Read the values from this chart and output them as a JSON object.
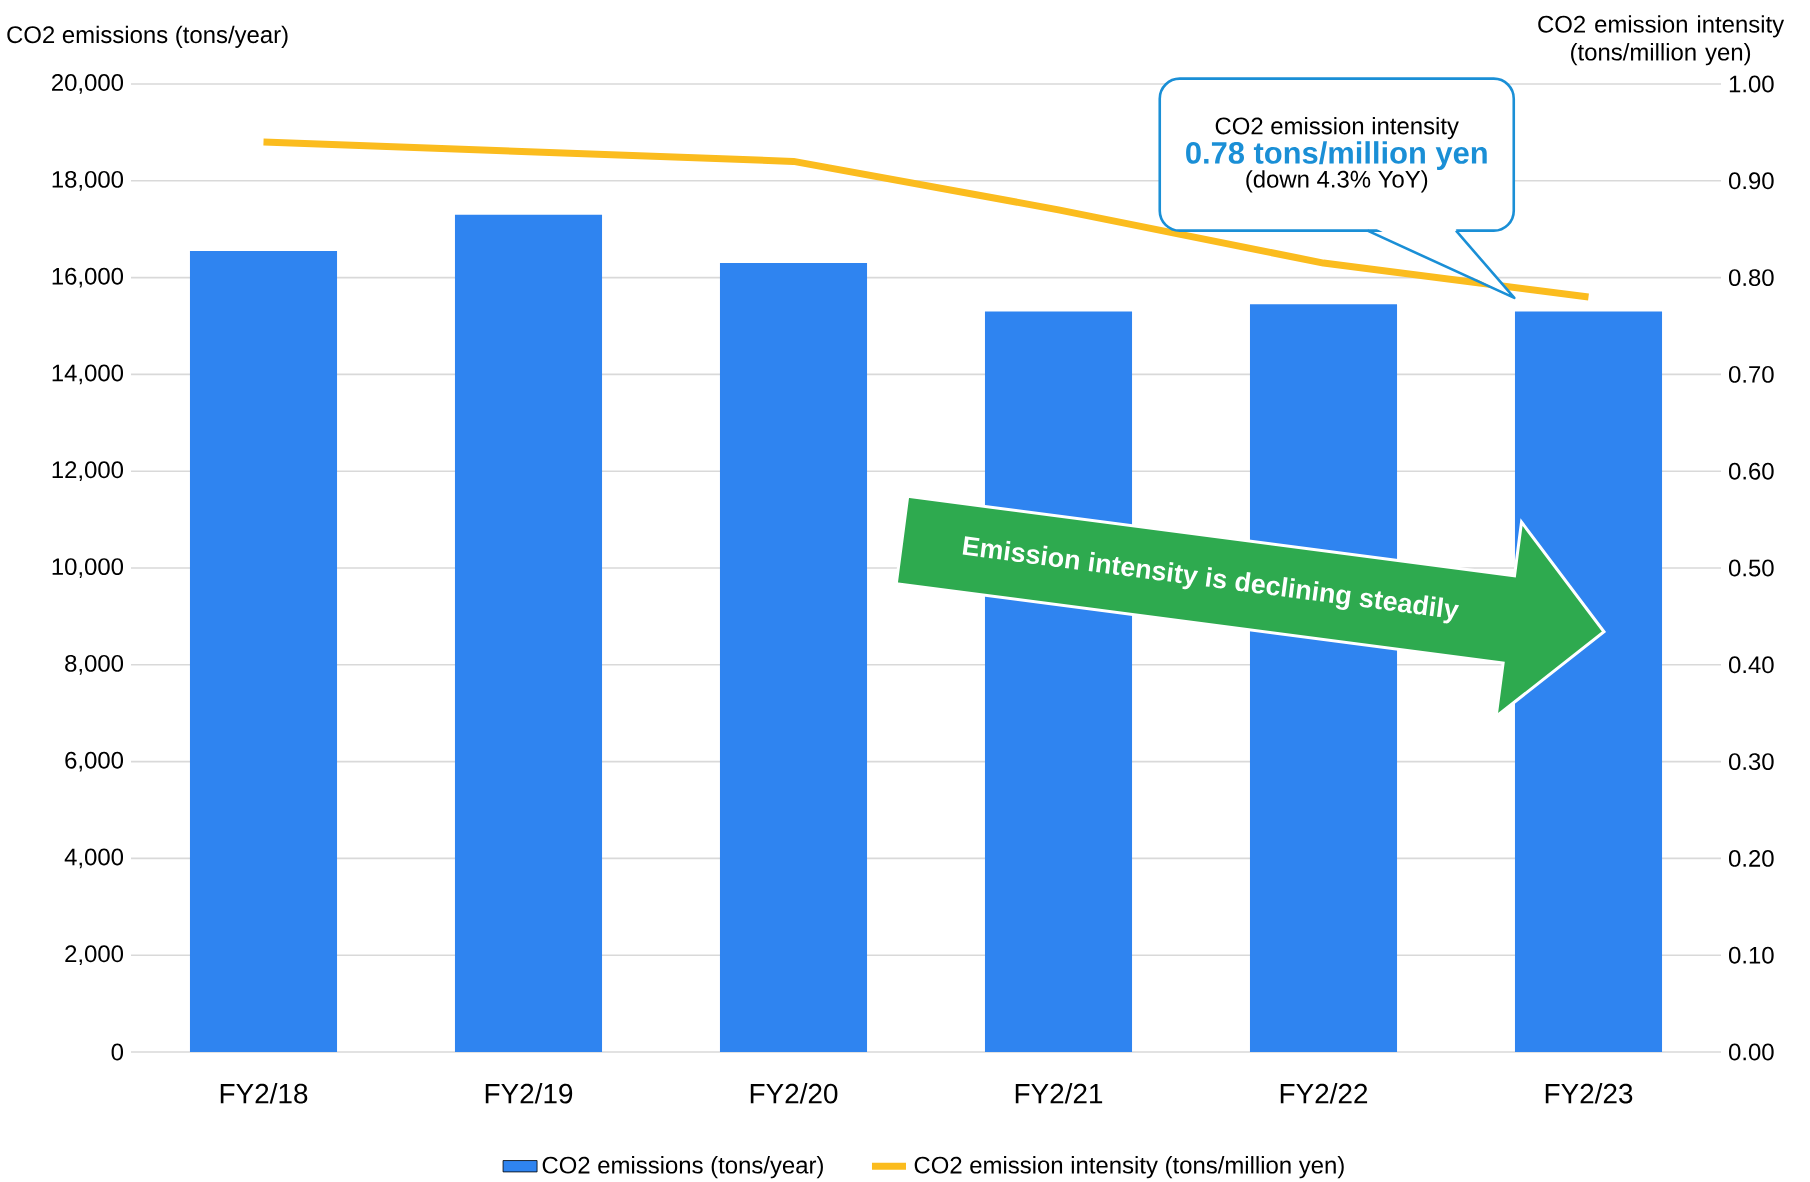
{
  "chart_data": {
    "type": "bar",
    "categories": [
      "FY2/18",
      "FY2/19",
      "FY2/20",
      "FY2/21",
      "FY2/22",
      "FY2/23"
    ],
    "series": [
      {
        "name": "CO2 emissions (tons/year)",
        "color": "#2f84f0",
        "values": [
          16550,
          17300,
          16300,
          15300,
          15450,
          15300
        ]
      },
      {
        "name": "CO2 emission intensity (tons/million yen)",
        "type": "line",
        "axis": "y2",
        "color": "#fbbc1e",
        "values": [
          0.94,
          0.93,
          0.92,
          0.87,
          0.815,
          0.78
        ]
      }
    ],
    "ylabel": "CO2 emissions (tons/year)",
    "y2label": "CO2 emission intensity (tons/million yen)",
    "ylim": [
      0,
      20000
    ],
    "yticks": [
      {
        "value": 0,
        "label": "0"
      },
      {
        "value": 2000,
        "label": "2,000"
      },
      {
        "value": 4000,
        "label": "4,000"
      },
      {
        "value": 6000,
        "label": "6,000"
      },
      {
        "value": 8000,
        "label": "8,000"
      },
      {
        "value": 10000,
        "label": "10,000"
      },
      {
        "value": 12000,
        "label": "12,000"
      },
      {
        "value": 14000,
        "label": "14,000"
      },
      {
        "value": 16000,
        "label": "16,000"
      },
      {
        "value": 18000,
        "label": "18,000"
      },
      {
        "value": 20000,
        "label": "20,000"
      }
    ],
    "y2lim": [
      0,
      1
    ],
    "y2ticks": [
      {
        "value": 0,
        "label": "0.00"
      },
      {
        "value": 0.1,
        "label": "0.10"
      },
      {
        "value": 0.2,
        "label": "0.20"
      },
      {
        "value": 0.3,
        "label": "0.30"
      },
      {
        "value": 0.4,
        "label": "0.40"
      },
      {
        "value": 0.5,
        "label": "0.50"
      },
      {
        "value": 0.6,
        "label": "0.60"
      },
      {
        "value": 0.7,
        "label": "0.70"
      },
      {
        "value": 0.8,
        "label": "0.80"
      },
      {
        "value": 0.9,
        "label": "0.90"
      },
      {
        "value": 1.0,
        "label": "1.00"
      }
    ],
    "grid": "y",
    "legend": "bottom",
    "annotations": [
      "CO2 emission intensity",
      "0.78 tons/million yen",
      "(down 4.3% YoY)",
      "Emission intensity is declining steadily"
    ]
  }
}
